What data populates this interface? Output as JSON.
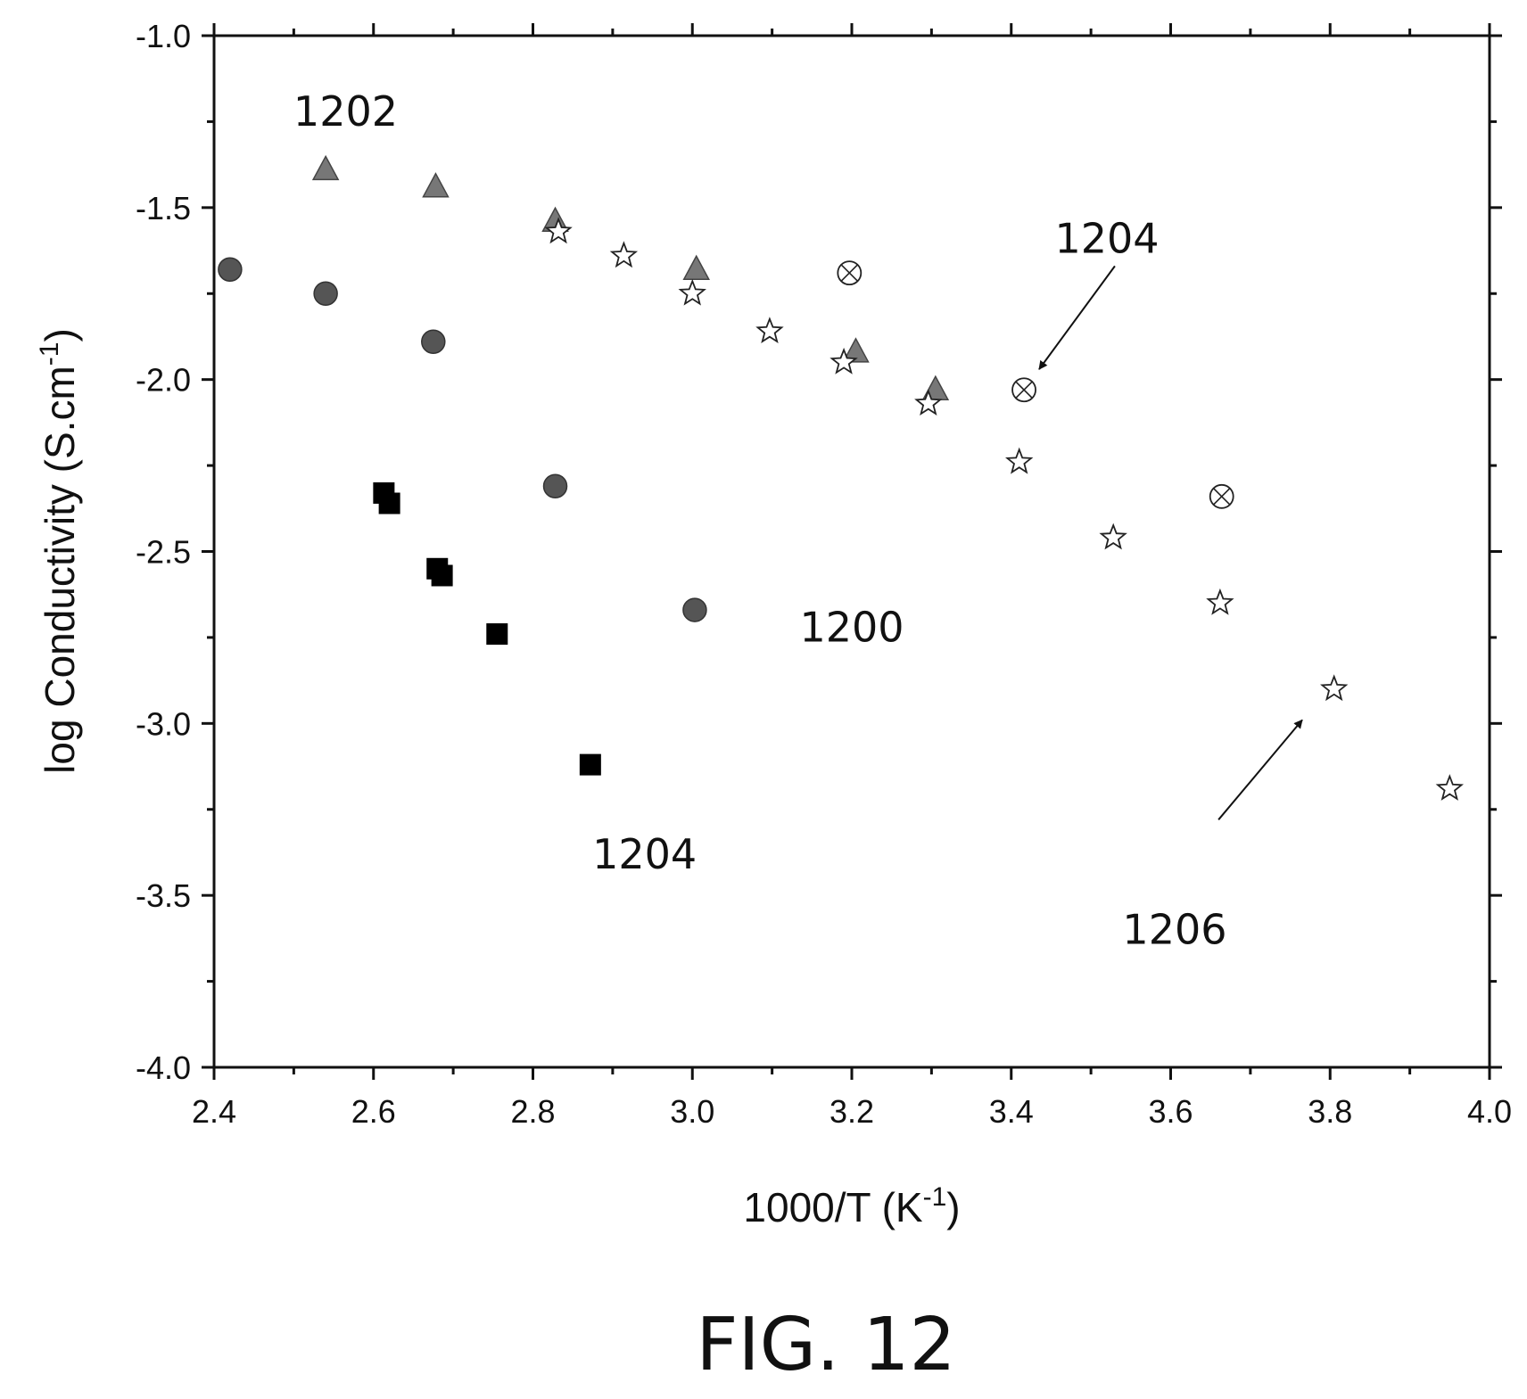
{
  "chart_data": {
    "type": "scatter",
    "title": "",
    "xlabel": "1000/T (K",
    "xlabel_sup": "-1",
    "xlabel_end": ")",
    "ylabel": "log Conductivity (S.cm",
    "ylabel_sup": "-1",
    "ylabel_end": ")",
    "xlim": [
      2.4,
      4.0
    ],
    "ylim": [
      -4.0,
      -1.0
    ],
    "xticks": [
      2.4,
      2.6,
      2.8,
      3.0,
      3.2,
      3.4,
      3.6,
      3.8,
      4.0
    ],
    "xtick_labels": [
      "2.4",
      "2.6",
      "2.8",
      "3.0",
      "3.2",
      "3.4",
      "3.6",
      "3.8",
      "4.0"
    ],
    "yticks": [
      -1.0,
      -1.5,
      -2.0,
      -2.5,
      -3.0,
      -3.5,
      -4.0
    ],
    "ytick_labels": [
      "-1.0",
      "-1.5",
      "-2.0",
      "-2.5",
      "-3.0",
      "-3.5",
      "-4.0"
    ],
    "grid": false,
    "series": [
      {
        "marker": "square",
        "color": "#000000",
        "points": [
          [
            2.613,
            -2.33
          ],
          [
            2.62,
            -2.36
          ],
          [
            2.68,
            -2.55
          ],
          [
            2.686,
            -2.57
          ],
          [
            2.755,
            -2.74
          ],
          [
            2.872,
            -3.12
          ]
        ]
      },
      {
        "marker": "circle",
        "color": "#555555",
        "points": [
          [
            2.42,
            -1.68
          ],
          [
            2.54,
            -1.75
          ],
          [
            2.675,
            -1.89
          ],
          [
            2.828,
            -2.31
          ],
          [
            3.003,
            -2.67
          ]
        ]
      },
      {
        "marker": "triangle",
        "color": "#777777",
        "points": [
          [
            2.54,
            -1.39
          ],
          [
            2.678,
            -1.44
          ],
          [
            2.828,
            -1.54
          ],
          [
            3.005,
            -1.68
          ],
          [
            3.205,
            -1.92
          ],
          [
            3.305,
            -2.03
          ]
        ]
      },
      {
        "marker": "star",
        "color": "#ffffff",
        "points": [
          [
            2.832,
            -1.57
          ],
          [
            2.914,
            -1.64
          ],
          [
            3.0,
            -1.75
          ],
          [
            3.097,
            -1.86
          ],
          [
            3.19,
            -1.95
          ],
          [
            3.296,
            -2.07
          ],
          [
            3.41,
            -2.24
          ],
          [
            3.528,
            -2.46
          ],
          [
            3.662,
            -2.65
          ],
          [
            3.805,
            -2.9
          ],
          [
            3.95,
            -3.19
          ]
        ]
      },
      {
        "marker": "circle-x",
        "color": "#ffffff",
        "points": [
          [
            3.197,
            -1.69
          ],
          [
            3.416,
            -2.03
          ],
          [
            3.664,
            -2.34
          ]
        ]
      }
    ],
    "annotations": [
      {
        "text": "1202",
        "x": 2.565,
        "y": -1.22
      },
      {
        "text": "1204",
        "x": 3.52,
        "y": -1.59
      },
      {
        "text": "1200",
        "x": 3.2,
        "y": -2.72
      },
      {
        "text": "1204",
        "x": 2.94,
        "y": -3.38
      },
      {
        "text": "1206",
        "x": 3.605,
        "y": -3.6
      }
    ],
    "arrows": [
      {
        "from": [
          3.53,
          -1.67
        ],
        "to": [
          3.435,
          -1.97
        ]
      },
      {
        "from": [
          3.66,
          -3.28
        ],
        "to": [
          3.765,
          -2.99
        ]
      }
    ]
  },
  "caption": "FIG. 12"
}
